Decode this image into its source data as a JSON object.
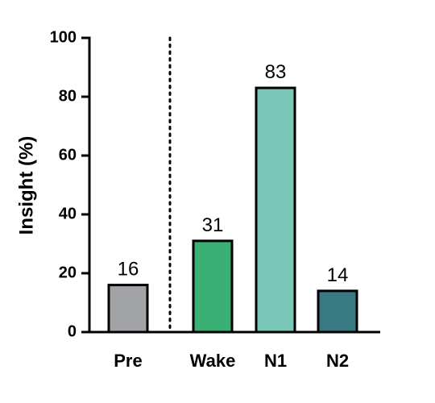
{
  "chart_data": {
    "type": "bar",
    "ylabel": "Insight (%)",
    "ylim": [
      0,
      100
    ],
    "yticks": [
      0,
      20,
      40,
      60,
      80,
      100
    ],
    "categories": [
      "Pre",
      "Wake",
      "N1",
      "N2"
    ],
    "values": [
      16,
      31,
      83,
      14
    ],
    "data_labels": [
      "16",
      "31",
      "83",
      "14"
    ],
    "bar_colors": [
      "#a2a3a7",
      "#3bb075",
      "#7ac7b8",
      "#387a82"
    ],
    "bar_edge_color": "#000000",
    "separator": {
      "after_category": "Pre",
      "style": "dotted"
    },
    "grid": false,
    "legend": "none"
  }
}
